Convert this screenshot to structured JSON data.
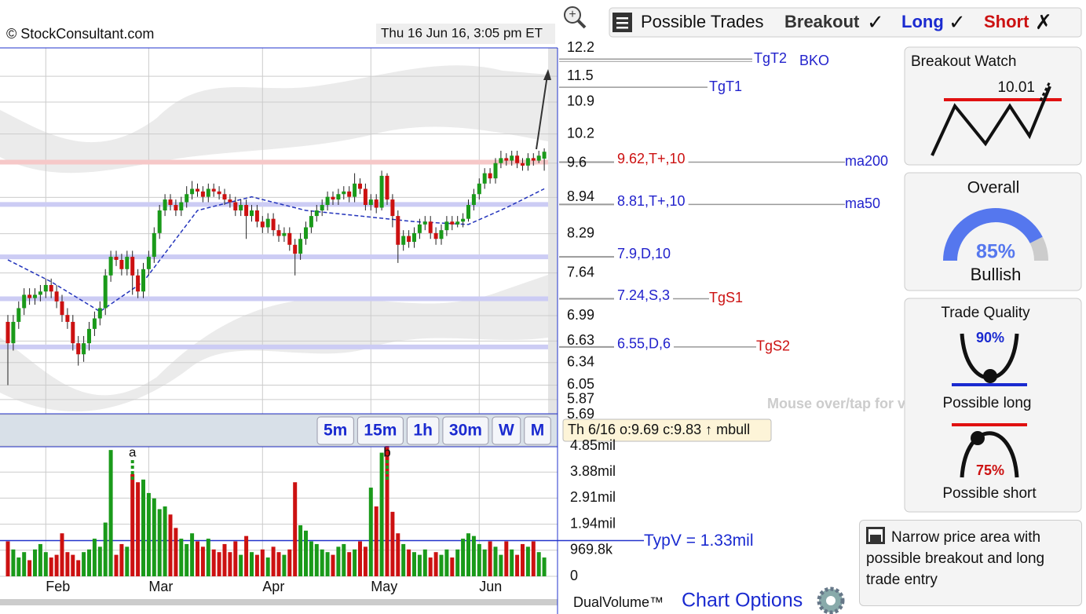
{
  "header": {
    "copyright": "© StockConsultant.com",
    "timestamp": "Thu 16 Jun 16, 3:05 pm ET"
  },
  "chart_data": {
    "type": "candlestick",
    "log_scale": true,
    "grid": true,
    "up_color": "#1a9a1a",
    "down_color": "#cc1111",
    "categories": [
      null,
      null,
      null,
      null,
      null,
      null,
      null,
      "Feb",
      null,
      null,
      null,
      null,
      null,
      null,
      null,
      null,
      null,
      null,
      null,
      null,
      null,
      null,
      null,
      null,
      null,
      null,
      "Mar",
      null,
      null,
      null,
      null,
      null,
      null,
      null,
      null,
      null,
      null,
      null,
      null,
      null,
      null,
      null,
      null,
      null,
      null,
      null,
      null,
      "Apr",
      null,
      null,
      null,
      null,
      null,
      null,
      null,
      null,
      null,
      null,
      null,
      null,
      null,
      null,
      null,
      null,
      null,
      null,
      null,
      "May",
      null,
      null,
      null,
      null,
      null,
      null,
      null,
      null,
      null,
      null,
      null,
      null,
      null,
      null,
      null,
      null,
      null,
      null,
      null,
      "Jun",
      null,
      null,
      null,
      null,
      null,
      null,
      null,
      null,
      null,
      null,
      null,
      null
    ],
    "open": [
      6.9,
      6.6,
      6.9,
      7.1,
      7.3,
      7.25,
      7.3,
      7.35,
      7.45,
      7.35,
      7.2,
      7.0,
      6.9,
      6.6,
      6.45,
      6.6,
      6.8,
      6.95,
      7.1,
      7.6,
      7.9,
      7.85,
      7.7,
      7.9,
      7.6,
      7.35,
      7.7,
      7.9,
      8.3,
      8.7,
      8.9,
      8.8,
      8.7,
      8.85,
      9.0,
      9.1,
      9.05,
      8.95,
      9.1,
      9.05,
      9.0,
      8.9,
      8.85,
      8.7,
      8.8,
      8.6,
      8.7,
      8.5,
      8.4,
      8.55,
      8.35,
      8.25,
      8.3,
      8.1,
      7.95,
      8.2,
      8.4,
      8.6,
      8.7,
      8.8,
      8.95,
      8.9,
      9.0,
      9.05,
      8.95,
      9.2,
      9.1,
      8.8,
      8.9,
      8.75,
      9.35,
      8.9,
      8.6,
      8.1,
      8.25,
      8.15,
      8.3,
      8.45,
      8.5,
      8.3,
      8.2,
      8.35,
      8.5,
      8.45,
      8.5,
      8.55,
      8.8,
      9.0,
      9.2,
      9.4,
      9.3,
      9.6,
      9.7,
      9.65,
      9.75,
      9.6,
      9.55,
      9.7,
      9.65,
      9.69
    ],
    "high": [
      7.0,
      7.0,
      7.2,
      7.4,
      7.4,
      7.4,
      7.45,
      7.55,
      7.55,
      7.45,
      7.3,
      7.1,
      7.0,
      6.7,
      6.7,
      6.9,
      7.05,
      7.2,
      7.7,
      8.0,
      8.0,
      7.95,
      8.0,
      8.0,
      7.7,
      7.8,
      8.0,
      8.4,
      8.8,
      9.0,
      9.0,
      8.9,
      8.95,
      9.15,
      9.25,
      9.2,
      9.15,
      9.2,
      9.2,
      9.15,
      9.1,
      9.0,
      8.95,
      8.9,
      8.9,
      8.8,
      8.8,
      8.6,
      8.65,
      8.65,
      8.45,
      8.4,
      8.4,
      8.2,
      8.3,
      8.5,
      8.7,
      8.8,
      8.9,
      9.05,
      9.05,
      9.1,
      9.15,
      9.15,
      9.4,
      9.3,
      9.2,
      9.0,
      9.0,
      9.45,
      9.4,
      9.0,
      8.7,
      8.35,
      8.35,
      8.4,
      8.55,
      8.6,
      8.6,
      8.4,
      8.45,
      8.6,
      8.6,
      8.6,
      8.65,
      8.9,
      9.1,
      9.3,
      9.5,
      9.5,
      9.7,
      9.85,
      9.8,
      9.85,
      9.85,
      9.7,
      9.8,
      9.8,
      9.85,
      9.9
    ],
    "low": [
      6.05,
      6.5,
      6.8,
      7.0,
      7.15,
      7.15,
      7.2,
      7.25,
      7.25,
      7.1,
      6.9,
      6.8,
      6.5,
      6.3,
      6.35,
      6.5,
      6.7,
      6.85,
      7.0,
      7.5,
      7.75,
      7.6,
      7.6,
      7.3,
      7.25,
      7.25,
      7.6,
      7.8,
      8.2,
      8.6,
      8.7,
      8.6,
      8.6,
      8.75,
      8.9,
      8.95,
      8.85,
      8.85,
      8.95,
      8.9,
      8.8,
      8.75,
      8.6,
      8.6,
      8.2,
      8.5,
      8.4,
      8.3,
      8.3,
      8.25,
      8.15,
      8.15,
      8.0,
      7.6,
      7.85,
      8.1,
      8.3,
      8.5,
      8.6,
      8.7,
      8.8,
      8.8,
      8.9,
      8.85,
      8.85,
      9.0,
      8.7,
      8.7,
      8.65,
      8.7,
      8.8,
      8.4,
      7.8,
      8.0,
      8.05,
      8.05,
      8.2,
      8.35,
      8.2,
      8.1,
      8.1,
      8.25,
      8.35,
      8.4,
      8.4,
      8.5,
      8.7,
      8.9,
      9.1,
      9.2,
      9.2,
      9.5,
      9.55,
      9.55,
      9.5,
      9.45,
      9.45,
      9.55,
      9.6,
      9.45
    ],
    "close": [
      6.6,
      6.9,
      7.1,
      7.3,
      7.25,
      7.3,
      7.35,
      7.45,
      7.35,
      7.2,
      7.0,
      6.9,
      6.6,
      6.45,
      6.6,
      6.8,
      6.95,
      7.1,
      7.6,
      7.9,
      7.85,
      7.7,
      7.9,
      7.6,
      7.35,
      7.7,
      7.9,
      8.3,
      8.7,
      8.9,
      8.8,
      8.7,
      8.85,
      9.0,
      9.1,
      9.05,
      8.95,
      9.1,
      9.05,
      9.0,
      8.9,
      8.85,
      8.7,
      8.8,
      8.6,
      8.7,
      8.5,
      8.4,
      8.55,
      8.35,
      8.25,
      8.3,
      8.1,
      7.95,
      8.2,
      8.4,
      8.6,
      8.7,
      8.8,
      8.95,
      8.9,
      9.0,
      9.05,
      8.95,
      9.2,
      9.1,
      8.8,
      8.9,
      8.75,
      9.35,
      8.9,
      8.6,
      8.1,
      8.25,
      8.15,
      8.3,
      8.45,
      8.5,
      8.3,
      8.2,
      8.35,
      8.5,
      8.45,
      8.5,
      8.55,
      8.8,
      9.0,
      9.2,
      9.4,
      9.3,
      9.6,
      9.7,
      9.65,
      9.75,
      9.6,
      9.55,
      9.7,
      9.65,
      9.75,
      9.83
    ],
    "ylim": [
      5.69,
      12.2
    ],
    "yticks": [
      12.2,
      11.5,
      10.9,
      10.2,
      9.6,
      8.94,
      8.29,
      7.64,
      6.99,
      6.63,
      6.34,
      6.05,
      5.87,
      5.69
    ],
    "ma50": {
      "color": "#2233bb",
      "x": [
        0,
        8,
        17,
        25,
        35,
        45,
        55,
        65,
        75,
        85,
        92,
        99
      ],
      "values": [
        7.85,
        7.5,
        7.05,
        7.5,
        8.7,
        8.95,
        8.7,
        8.6,
        8.5,
        8.45,
        8.75,
        9.1
      ]
    },
    "levels": [
      {
        "value": 9.62,
        "label": "9.62,T+,10",
        "tag": "ma200",
        "color": "#f6c8c8",
        "label_color": "#cc1111",
        "tag_color": "#2222cc"
      },
      {
        "value": 8.81,
        "label": "8.81,T+,10",
        "tag": "ma50",
        "color": "#ccccf4",
        "label_color": "#2222cc",
        "tag_color": "#2222cc"
      },
      {
        "value": 7.9,
        "label": "7.9,D,10",
        "color": "#ccccf4",
        "label_color": "#2222cc"
      },
      {
        "value": 7.24,
        "label": "7.24,S,3",
        "tag": "TgS1",
        "color": "#ccccf4",
        "label_color": "#2222cc",
        "tag_color": "#cc1111"
      },
      {
        "value": 6.55,
        "label": "6.55,D,6",
        "tag": "TgS2",
        "color": "#ccccf4",
        "label_color": "#2222cc",
        "tag_color": "#cc1111"
      }
    ],
    "targets": [
      {
        "value": 11.92,
        "label": "TgT2",
        "note": "BKO"
      },
      {
        "value": 11.24,
        "label": "TgT1"
      }
    ],
    "annotations": [
      {
        "index": 23,
        "label": "a"
      },
      {
        "index": 70,
        "label": "b"
      }
    ],
    "volume": {
      "values": [
        1300000,
        1000000,
        700000,
        900000,
        600000,
        1000000,
        1200000,
        900000,
        700000,
        800000,
        1600000,
        900000,
        800000,
        600000,
        900000,
        1000000,
        1400000,
        1100000,
        2000000,
        4700000,
        800000,
        1200000,
        1100000,
        3800000,
        3500000,
        3600000,
        3100000,
        2900000,
        2500000,
        2600000,
        2300000,
        1800000,
        1400000,
        1200000,
        1600000,
        1300000,
        1100000,
        1400000,
        1000000,
        900000,
        1200000,
        900000,
        1300000,
        800000,
        1500000,
        900000,
        800000,
        1000000,
        700000,
        1100000,
        900000,
        800000,
        1000000,
        3500000,
        1900000,
        1700000,
        1300000,
        1200000,
        1000000,
        900000,
        800000,
        1100000,
        1200000,
        900000,
        1000000,
        1300000,
        1100000,
        3300000,
        2600000,
        4600000,
        4850000,
        2400000,
        1600000,
        1200000,
        1000000,
        900000,
        800000,
        1000000,
        700000,
        900000,
        800000,
        1000000,
        700000,
        1000000,
        1400000,
        1600000,
        1500000,
        1200000,
        1000000,
        1300000,
        1100000,
        800000,
        1300000,
        1000000,
        800000,
        1200000,
        1100000,
        1300000,
        900000,
        700000
      ],
      "ylim": [
        0,
        4850000
      ],
      "yticks": [
        0,
        {
          "value": 969800,
          "label": "969.8k"
        },
        {
          "value": 1940000,
          "label": "1.94mil"
        },
        {
          "value": 2910000,
          "label": "2.91mil"
        },
        {
          "value": 3880000,
          "label": "3.88mil"
        },
        {
          "value": 4850000,
          "label": "4.85mil"
        }
      ],
      "typical": {
        "value": 1330000,
        "label": "TypV = 1.33mil"
      }
    },
    "hover_hint": "Mouse over/tap for values",
    "tooltip": "Th 6/16 o:9.69 c:9.83 ↑ mbull",
    "timeframes": [
      "5m",
      "15m",
      "1h",
      "30m",
      "W",
      "M"
    ]
  },
  "trades": {
    "title": "Possible Trades",
    "breakout": "Breakout",
    "breakout_mark": "✓",
    "long": "Long",
    "long_mark": "✓",
    "short": "Short",
    "short_mark": "✗"
  },
  "breakout_watch": {
    "title": "Breakout Watch",
    "level": 10.01
  },
  "overall": {
    "title": "Overall",
    "value": 85,
    "label": "85%",
    "text": "Bullish"
  },
  "trade_quality": {
    "title": "Trade Quality",
    "long": {
      "value": 90,
      "label": "90%",
      "text": "Possible long"
    },
    "short": {
      "value": 75,
      "label": "75%",
      "text": "Possible short"
    }
  },
  "note": "Narrow price area with possible breakout and long trade entry",
  "footer": {
    "dual_volume": "DualVolume™",
    "chart_options": "Chart Options"
  }
}
